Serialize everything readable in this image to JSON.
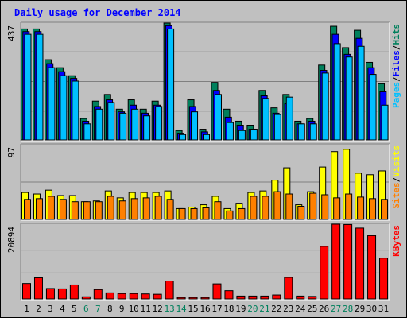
{
  "title": "Daily usage for December 2014",
  "colors": {
    "background": "#c0c0c0",
    "title": "#0000ff",
    "hits": "#00805c",
    "files": "#0000ff",
    "pages": "#00c0ff",
    "visits": "#ffff00",
    "sites": "#ff8000",
    "kbytes": "#ff0000",
    "weekday_label": "#000000",
    "weekend_label": "#00805c"
  },
  "chart_data": [
    {
      "type": "bar",
      "panel": "pages-files-hits",
      "y_axis_label": "437",
      "ylim": [
        0,
        437
      ],
      "right_labels": [
        {
          "text": "Pages",
          "color": "#00c0ff"
        },
        {
          "text": "/",
          "color": "#000000"
        },
        {
          "text": "Files",
          "color": "#0000ff"
        },
        {
          "text": "/",
          "color": "#000000"
        },
        {
          "text": "Hits",
          "color": "#00805c"
        }
      ],
      "categories": [
        "1",
        "2",
        "3",
        "4",
        "5",
        "6",
        "7",
        "8",
        "9",
        "10",
        "11",
        "12",
        "13",
        "14",
        "15",
        "16",
        "17",
        "18",
        "19",
        "20",
        "21",
        "22",
        "23",
        "24",
        "25",
        "26",
        "27",
        "28",
        "29",
        "30",
        "31"
      ],
      "weekend_days": [
        "6",
        "7",
        "13",
        "14",
        "20",
        "21",
        "27",
        "28"
      ],
      "series": [
        {
          "name": "Hits",
          "values": [
            415,
            415,
            300,
            270,
            240,
            80,
            145,
            170,
            115,
            150,
            115,
            145,
            437,
            35,
            150,
            40,
            215,
            115,
            70,
            55,
            185,
            120,
            170,
            70,
            80,
            280,
            425,
            345,
            410,
            290,
            210
          ]
        },
        {
          "name": "Files",
          "values": [
            405,
            405,
            285,
            255,
            230,
            70,
            125,
            150,
            105,
            130,
            100,
            130,
            427,
            25,
            125,
            30,
            185,
            85,
            55,
            40,
            165,
            100,
            135,
            60,
            70,
            260,
            395,
            320,
            380,
            270,
            180
          ]
        },
        {
          "name": "Pages",
          "values": [
            395,
            395,
            270,
            240,
            220,
            60,
            115,
            140,
            100,
            115,
            90,
            125,
            415,
            20,
            105,
            20,
            170,
            65,
            35,
            40,
            155,
            95,
            160,
            60,
            60,
            250,
            360,
            310,
            350,
            245,
            130
          ]
        }
      ]
    },
    {
      "type": "bar",
      "panel": "visits-sites",
      "y_axis_label": "97",
      "ylim": [
        0,
        97
      ],
      "right_labels": [
        {
          "text": "Sites",
          "color": "#ff8000"
        },
        {
          "text": "/",
          "color": "#000000"
        },
        {
          "text": "Visits",
          "color": "#ffff00"
        }
      ],
      "categories": [
        "1",
        "2",
        "3",
        "4",
        "5",
        "6",
        "7",
        "8",
        "9",
        "10",
        "11",
        "12",
        "13",
        "14",
        "15",
        "16",
        "17",
        "18",
        "19",
        "20",
        "21",
        "22",
        "23",
        "24",
        "25",
        "26",
        "27",
        "28",
        "29",
        "30",
        "31"
      ],
      "series": [
        {
          "name": "Visits",
          "values": [
            35,
            33,
            38,
            31,
            31,
            23,
            24,
            37,
            28,
            35,
            35,
            35,
            37,
            14,
            16,
            19,
            30,
            14,
            21,
            35,
            37,
            51,
            67,
            19,
            36,
            68,
            88,
            91,
            60,
            58,
            63
          ]
        },
        {
          "name": "Sites",
          "values": [
            26,
            27,
            30,
            26,
            23,
            23,
            23,
            30,
            24,
            27,
            28,
            30,
            26,
            14,
            14,
            15,
            23,
            11,
            14,
            30,
            30,
            36,
            33,
            17,
            34,
            32,
            28,
            33,
            29,
            27,
            26
          ]
        }
      ]
    },
    {
      "type": "bar",
      "panel": "kbytes",
      "y_axis_label": "20894",
      "ylim": [
        0,
        20894
      ],
      "right_labels": [
        {
          "text": "KBytes",
          "color": "#ff0000"
        }
      ],
      "categories": [
        "1",
        "2",
        "3",
        "4",
        "5",
        "6",
        "7",
        "8",
        "9",
        "10",
        "11",
        "12",
        "13",
        "14",
        "15",
        "16",
        "17",
        "18",
        "19",
        "20",
        "21",
        "22",
        "23",
        "24",
        "25",
        "26",
        "27",
        "28",
        "29",
        "30",
        "31"
      ],
      "series": [
        {
          "name": "KBytes",
          "values": [
            4300,
            5900,
            2900,
            2800,
            3900,
            600,
            2600,
            1700,
            1500,
            1500,
            1400,
            1300,
            5000,
            400,
            400,
            400,
            4200,
            2300,
            800,
            800,
            800,
            1100,
            6000,
            800,
            700,
            14700,
            20894,
            20800,
            19800,
            17700,
            11400
          ]
        }
      ]
    }
  ]
}
